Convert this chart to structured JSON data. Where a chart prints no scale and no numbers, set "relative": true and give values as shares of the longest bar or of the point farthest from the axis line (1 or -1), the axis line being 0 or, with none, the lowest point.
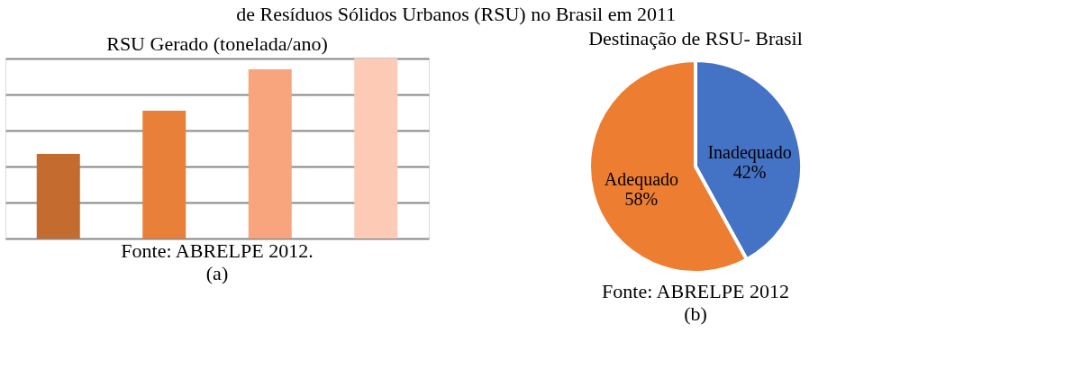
{
  "chart_data": [
    {
      "type": "bar",
      "title": "RSU Gerado (tonelada/ano)",
      "relative": true,
      "grid": "y",
      "categories": [
        null,
        null,
        null,
        null
      ],
      "values": [
        0.47,
        0.71,
        0.94,
        1
      ],
      "colors": [
        "#c46b2f",
        "#e8803a",
        "#f8a47c",
        "#fccab5"
      ],
      "tick_labels": false,
      "annotations": [
        "de Resíduos Sólidos Urbanos (RSU) no Brasil em 2011",
        "Fonte: ABRELPE 2012.",
        "(a)"
      ]
    },
    {
      "type": "pie",
      "title": "Destinação de RSU- Brasil",
      "categories": [
        "Inadequado",
        "Adequado"
      ],
      "values": [
        42,
        58
      ],
      "colors": [
        "#4472c4",
        "#ed7d31"
      ],
      "value_labels": [
        "42%",
        "58%"
      ],
      "annotations": [
        "Fonte: ABRELPE 2012",
        "(b)"
      ]
    }
  ]
}
